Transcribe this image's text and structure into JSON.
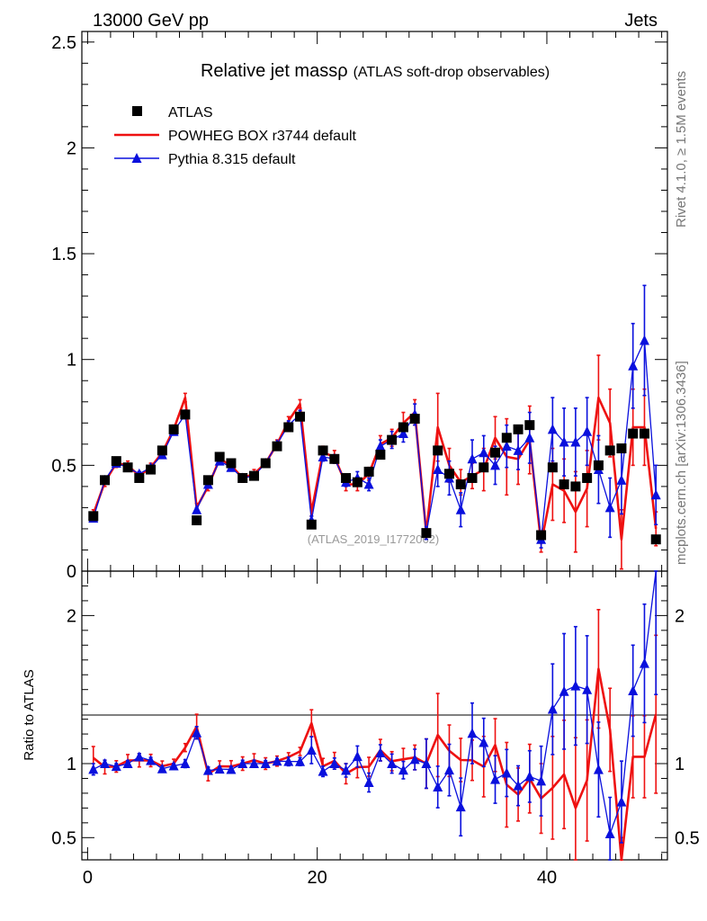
{
  "chart_data": {
    "type": "scatter",
    "header_left": "13000 GeV pp",
    "header_right": "Jets",
    "title_main": "Relative jet massρ",
    "title_sub": "(ATLAS soft-drop observables)",
    "side_text_top": "Rivet 4.1.0, ≥ 1.5M events",
    "side_text_bottom": "mcplots.cern.ch [arXiv:1306.3436]",
    "watermark": "(ATLAS_2019_I1772062)",
    "ratio_ylabel": "Ratio to ATLAS",
    "x_ticks": [
      "0",
      "20",
      "40"
    ],
    "main_y_ticks": [
      "0",
      "0.5",
      "1",
      "1.5",
      "2",
      "2.5"
    ],
    "ratio_y_ticks": [
      "0.5",
      "1",
      "2"
    ],
    "main_ylim": [
      0,
      2.55
    ],
    "ratio_ylim": [
      0.35,
      2.3
    ],
    "xlim": [
      -0.5,
      50.5
    ],
    "colors": {
      "data": "#000000",
      "powheg": "#ee1111",
      "pythia": "#0a10dd"
    },
    "series": [
      {
        "name": "ATLAS",
        "x": [
          0.5,
          1.5,
          2.5,
          3.5,
          4.5,
          5.5,
          6.5,
          7.5,
          8.5,
          9.5,
          10.5,
          11.5,
          12.5,
          13.5,
          14.5,
          15.5,
          16.5,
          17.5,
          18.5,
          19.5,
          20.5,
          21.5,
          22.5,
          23.5,
          24.5,
          25.5,
          26.5,
          27.5,
          28.5,
          29.5,
          30.5,
          31.5,
          32.5,
          33.5,
          34.5,
          35.5,
          36.5,
          37.5,
          38.5,
          39.5,
          40.5,
          41.5,
          42.5,
          43.5,
          44.5,
          45.5,
          46.5,
          47.5,
          48.5,
          49.5
        ],
        "values": [
          0.26,
          0.43,
          0.52,
          0.49,
          0.44,
          0.48,
          0.57,
          0.67,
          0.74,
          0.24,
          0.43,
          0.54,
          0.51,
          0.44,
          0.45,
          0.51,
          0.59,
          0.68,
          0.73,
          0.22,
          0.57,
          0.53,
          0.44,
          0.42,
          0.47,
          0.55,
          0.62,
          0.68,
          0.72,
          0.18,
          0.57,
          0.46,
          0.41,
          0.44,
          0.49,
          0.56,
          0.63,
          0.67,
          0.69,
          0.17,
          0.49,
          0.41,
          0.4,
          0.44,
          0.5,
          0.57,
          0.58,
          0.65,
          0.65,
          0.15
        ]
      },
      {
        "name": "POWHEG BOX r3744 default",
        "values": [
          0.27,
          0.42,
          0.51,
          0.5,
          0.45,
          0.49,
          0.56,
          0.67,
          0.82,
          0.3,
          0.4,
          0.53,
          0.5,
          0.44,
          0.46,
          0.51,
          0.6,
          0.71,
          0.79,
          0.28,
          0.56,
          0.54,
          0.41,
          0.41,
          0.46,
          0.6,
          0.63,
          0.7,
          0.75,
          0.18,
          0.68,
          0.5,
          0.42,
          0.45,
          0.48,
          0.63,
          0.54,
          0.53,
          0.62,
          0.13,
          0.41,
          0.38,
          0.28,
          0.39,
          0.82,
          0.7,
          0.15,
          0.68,
          0.68,
          0.2
        ],
        "errors": [
          0.02,
          0.02,
          0.02,
          0.02,
          0.02,
          0.02,
          0.02,
          0.02,
          0.02,
          0.02,
          0.02,
          0.02,
          0.02,
          0.02,
          0.02,
          0.02,
          0.02,
          0.02,
          0.02,
          0.02,
          0.03,
          0.03,
          0.03,
          0.03,
          0.03,
          0.04,
          0.04,
          0.05,
          0.06,
          0.03,
          0.16,
          0.08,
          0.06,
          0.06,
          0.1,
          0.1,
          0.18,
          0.12,
          0.16,
          0.04,
          0.17,
          0.15,
          0.19,
          0.18,
          0.2,
          0.16,
          0.14,
          0.18,
          0.18,
          0.08
        ]
      },
      {
        "name": "Pythia 8.315 default",
        "values": [
          0.25,
          0.43,
          0.51,
          0.49,
          0.46,
          0.49,
          0.55,
          0.66,
          0.74,
          0.29,
          0.41,
          0.52,
          0.49,
          0.44,
          0.45,
          0.51,
          0.6,
          0.69,
          0.74,
          0.24,
          0.54,
          0.53,
          0.42,
          0.44,
          0.41,
          0.59,
          0.62,
          0.65,
          0.74,
          0.18,
          0.48,
          0.44,
          0.29,
          0.53,
          0.56,
          0.5,
          0.59,
          0.57,
          0.63,
          0.15,
          0.67,
          0.61,
          0.61,
          0.66,
          0.48,
          0.3,
          0.43,
          0.97,
          1.09,
          0.36
        ],
        "errors": [
          0.01,
          0.01,
          0.01,
          0.01,
          0.01,
          0.01,
          0.01,
          0.01,
          0.02,
          0.01,
          0.01,
          0.01,
          0.01,
          0.01,
          0.01,
          0.01,
          0.01,
          0.02,
          0.02,
          0.02,
          0.02,
          0.02,
          0.02,
          0.03,
          0.03,
          0.03,
          0.04,
          0.04,
          0.05,
          0.03,
          0.08,
          0.08,
          0.08,
          0.09,
          0.08,
          0.09,
          0.1,
          0.09,
          0.12,
          0.04,
          0.15,
          0.16,
          0.16,
          0.16,
          0.16,
          0.14,
          0.16,
          0.2,
          0.26,
          0.14
        ]
      }
    ]
  }
}
